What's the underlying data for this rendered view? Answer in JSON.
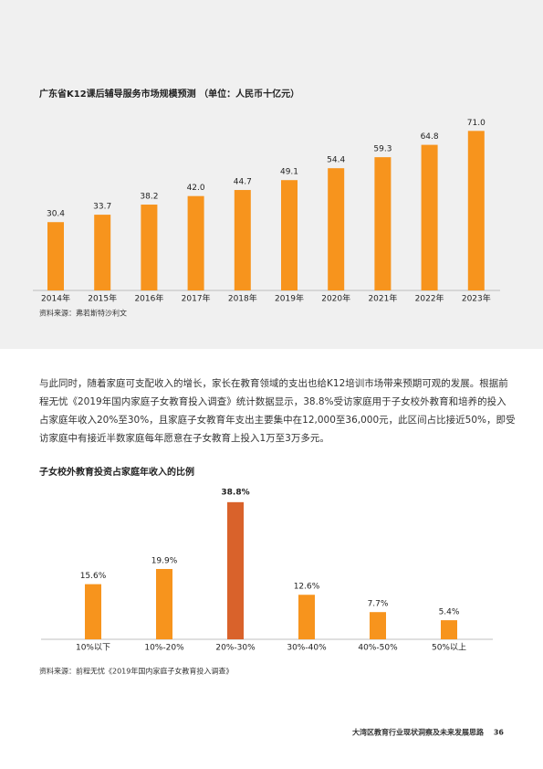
{
  "chart_data": [
    {
      "type": "bar",
      "title": "广东省K12课后辅导服务市场规模预测 （单位：人民币十亿元）",
      "categories": [
        "2014年",
        "2015年",
        "2016年",
        "2017年",
        "2018年",
        "2019年",
        "2020年",
        "2021年",
        "2022年",
        "2023年"
      ],
      "values": [
        30.4,
        33.7,
        38.2,
        42.0,
        44.7,
        49.1,
        54.4,
        59.3,
        64.8,
        71.0
      ],
      "value_labels": [
        "30.4",
        "33.7",
        "38.2",
        "42.0",
        "44.7",
        "49.1",
        "54.4",
        "59.3",
        "64.8",
        "71.0"
      ],
      "color": "#f7941d",
      "source": "资料来源：弗若斯特沙利文"
    },
    {
      "type": "bar",
      "title": "子女校外教育投资占家庭年收入的比例",
      "categories": [
        "10%以下",
        "10%-20%",
        "20%-30%",
        "30%-40%",
        "40%-50%",
        "50%以上"
      ],
      "values": [
        15.6,
        19.9,
        38.8,
        12.6,
        7.7,
        5.4
      ],
      "value_labels": [
        "15.6%",
        "19.9%",
        "38.8%",
        "12.6%",
        "7.7%",
        "5.4%"
      ],
      "color": "#f7941d",
      "colors": [
        "#f7941d",
        "#f7941d",
        "#d9622b",
        "#f7941d",
        "#f7941d",
        "#f7941d"
      ],
      "source": "资料来源：前程无忧《2019年国内家庭子女教育投入调查》"
    }
  ],
  "paragraph": [
    "与此同时，随着家庭可支配收入的增长，家长在教育领域的支出也给K12培训市场带来预期可观的发展。根据前",
    "程无忧《2019年国内家庭子女教育投入调查》统计数据显示，38.8%受访家庭用于子女校外教育和培养的投入",
    "占家庭年收入20%至30%，且家庭子女教育年支出主要集中在12,000至36,000元，此区间占比接近50%，即受",
    "访家庭中有接近半数家庭每年愿意在子女教育上投入1万至3万多元。"
  ],
  "footer": {
    "text": "大湾区教育行业现状洞察及未来发展思路",
    "page": "36"
  }
}
